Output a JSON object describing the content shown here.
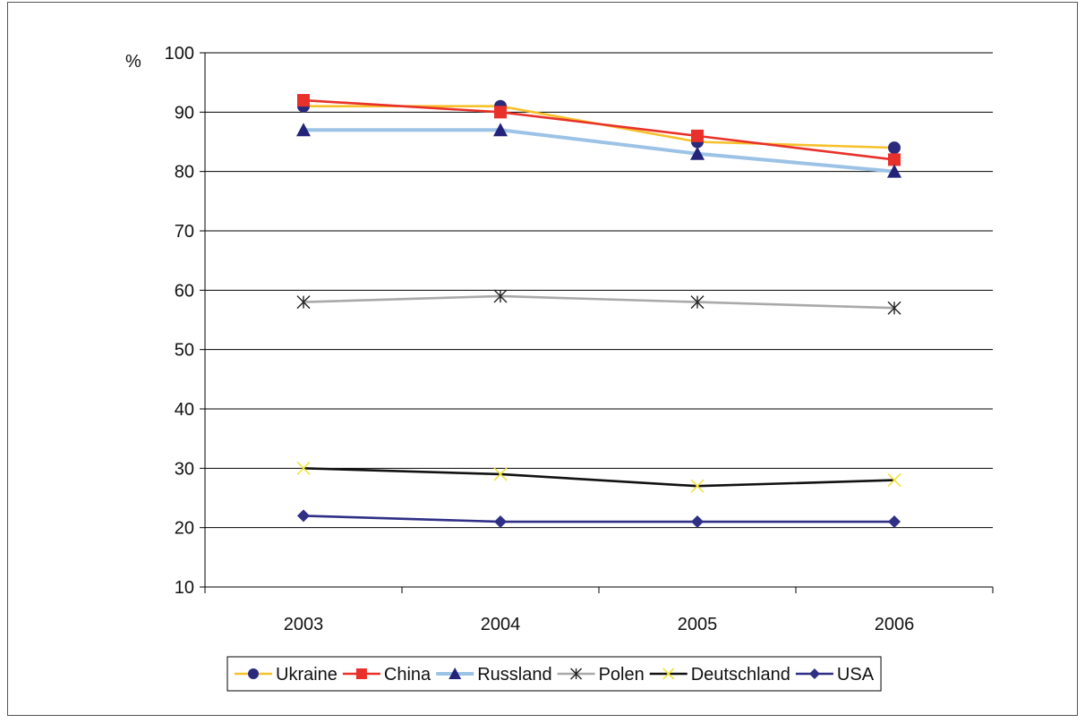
{
  "chart_data": {
    "type": "line",
    "title": "",
    "xlabel": "",
    "ylabel": "%",
    "categories": [
      "2003",
      "2004",
      "2005",
      "2006"
    ],
    "ylim": [
      10,
      100
    ],
    "yticks": [
      10,
      20,
      30,
      40,
      50,
      60,
      70,
      80,
      90,
      100
    ],
    "grid": "horizontal",
    "legend_position": "bottom",
    "series": [
      {
        "name": "Ukraine",
        "values": [
          91,
          91,
          85,
          84
        ],
        "line_color": "#f6c12a",
        "marker": "circle",
        "marker_color": "#2b2b7d"
      },
      {
        "name": "China",
        "values": [
          92,
          90,
          86,
          82
        ],
        "line_color": "#e8312a",
        "marker": "square",
        "marker_color": "#e8312a"
      },
      {
        "name": "Russland",
        "values": [
          87,
          87,
          83,
          80
        ],
        "line_color": "#9cc3e6",
        "marker": "triangle",
        "marker_color": "#23237a"
      },
      {
        "name": "Polen",
        "values": [
          58,
          59,
          58,
          57
        ],
        "line_color": "#a9a9a9",
        "marker": "asterisk",
        "marker_color": "#222222"
      },
      {
        "name": "Deutschland",
        "values": [
          30,
          29,
          27,
          28
        ],
        "line_color": "#111111",
        "marker": "x",
        "marker_color": "#f2e23a"
      },
      {
        "name": "USA",
        "values": [
          22,
          21,
          21,
          21
        ],
        "line_color": "#2f2f86",
        "marker": "diamond",
        "marker_color": "#2f2f86"
      }
    ]
  }
}
